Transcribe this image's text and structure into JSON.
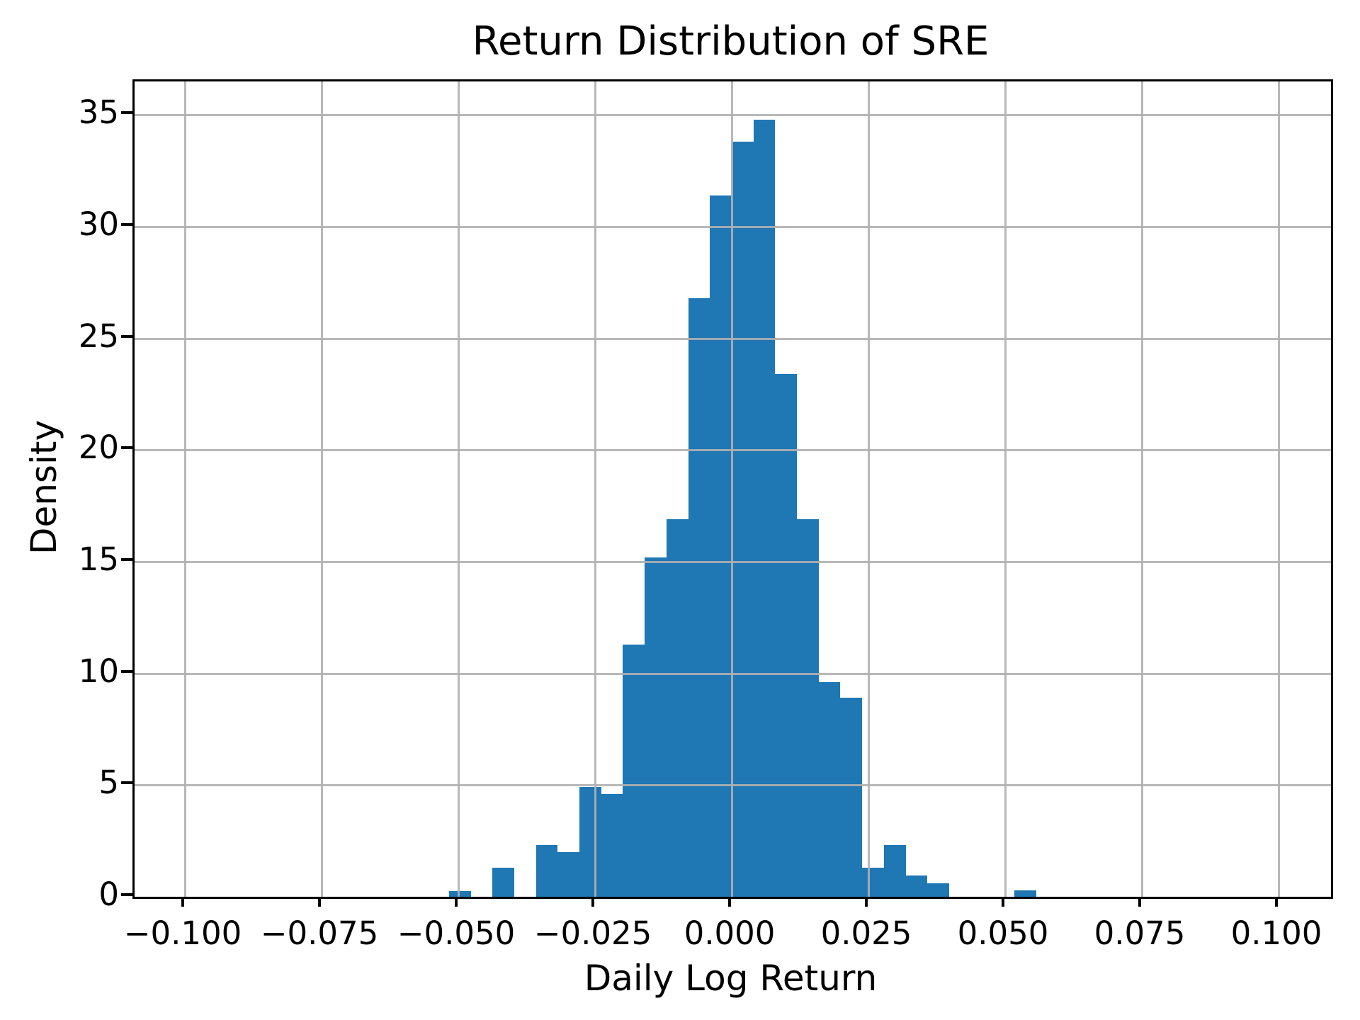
{
  "chart_data": {
    "type": "bar",
    "subtype": "histogram",
    "title": "Return Distribution of SRE",
    "xlabel": "Daily Log Return",
    "ylabel": "Density",
    "grid": true,
    "legend": "none",
    "bar_color": "#1f77b4",
    "grid_color": "#b0b0b0",
    "spine_color": "#000000",
    "text_color": "#000000",
    "background_color": "#ffffff",
    "xlim": [
      -0.1092,
      0.1096
    ],
    "ylim": [
      0,
      36.5
    ],
    "bin_edges": [
      -0.0517,
      -0.04772,
      -0.04375,
      -0.03977,
      -0.03579,
      -0.03182,
      -0.02784,
      -0.02386,
      -0.01989,
      -0.01591,
      -0.01193,
      -0.00795,
      -0.00398,
      0.0,
      0.00398,
      0.00795,
      0.01193,
      0.01591,
      0.01989,
      0.02386,
      0.02784,
      0.03182,
      0.03579,
      0.03977,
      0.04375,
      0.04772,
      0.0517,
      0.05568
    ],
    "densities": [
      0.25,
      0,
      1.3,
      0,
      2.3,
      2.0,
      4.9,
      4.6,
      11.3,
      15.2,
      16.9,
      26.8,
      31.4,
      33.8,
      34.8,
      23.4,
      16.9,
      9.6,
      8.9,
      1.3,
      2.3,
      0.95,
      0.6,
      0,
      0,
      0,
      0.3
    ],
    "xticks": [
      {
        "value": -0.1,
        "label": "−0.100"
      },
      {
        "value": -0.075,
        "label": "−0.075"
      },
      {
        "value": -0.05,
        "label": "−0.050"
      },
      {
        "value": -0.025,
        "label": "−0.025"
      },
      {
        "value": 0.0,
        "label": "0.000"
      },
      {
        "value": 0.025,
        "label": "0.025"
      },
      {
        "value": 0.05,
        "label": "0.050"
      },
      {
        "value": 0.075,
        "label": "0.075"
      },
      {
        "value": 0.1,
        "label": "0.100"
      }
    ],
    "yticks": [
      {
        "value": 0,
        "label": "0"
      },
      {
        "value": 5,
        "label": "5"
      },
      {
        "value": 10,
        "label": "10"
      },
      {
        "value": 15,
        "label": "15"
      },
      {
        "value": 20,
        "label": "20"
      },
      {
        "value": 25,
        "label": "25"
      },
      {
        "value": 30,
        "label": "30"
      },
      {
        "value": 35,
        "label": "35"
      }
    ]
  }
}
